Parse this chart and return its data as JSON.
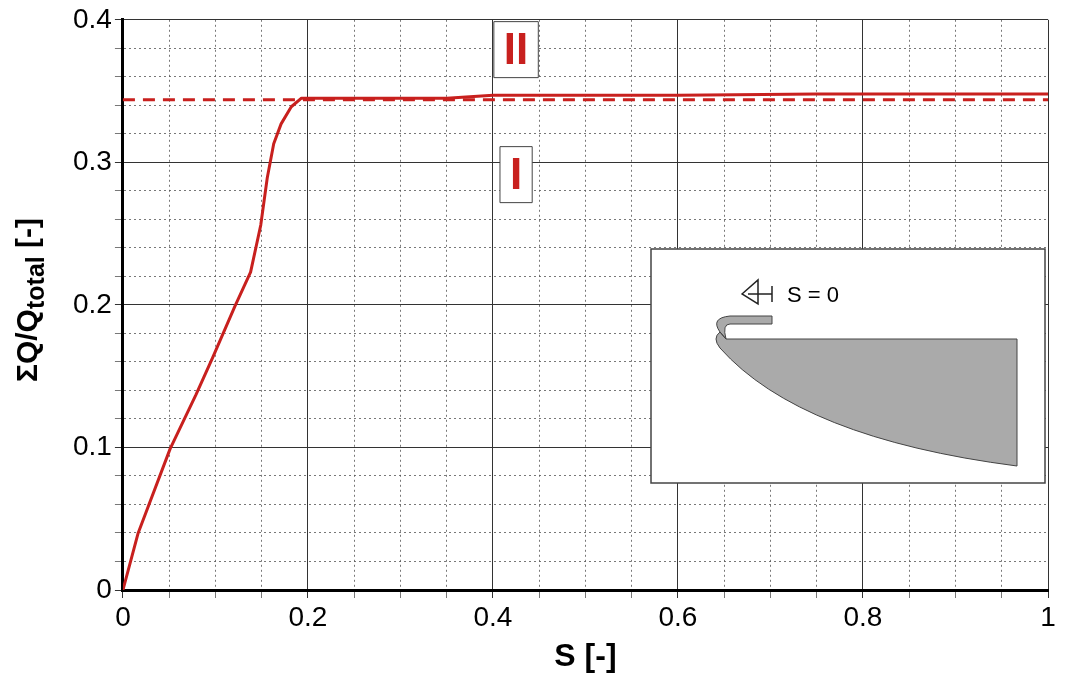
{
  "chart_data": {
    "type": "line",
    "xlabel": "S [-]",
    "ylabel": "ΣQ/Q$_{total}$ [-]",
    "x": [
      0,
      0.0165,
      0.051,
      0.079,
      0.097,
      0.121,
      0.138,
      0.149,
      0.156,
      0.163,
      0.171,
      0.182,
      0.193,
      0.25,
      0.35,
      0.4,
      0.6,
      0.75,
      0.85,
      1
    ],
    "series": [
      {
        "color": "#c8201e",
        "values": [
          0,
          0.04,
          0.099,
          0.137,
          0.163,
          0.199,
          0.223,
          0.256,
          0.289,
          0.313,
          0.327,
          0.339,
          0.345,
          0.345,
          0.345,
          0.347,
          0.347,
          0.348,
          0.348,
          0.348
        ]
      }
    ],
    "ref_lines": [
      {
        "axis": "y",
        "value": 0.344,
        "color": "#c8201e",
        "line_style": "dashed"
      }
    ],
    "annotations": [
      "II",
      "I",
      "S = 0"
    ],
    "xlim": [
      0,
      1
    ],
    "ylim": [
      0,
      0.4
    ],
    "xticks": [
      0,
      {
        "value": 0.05,
        "label": null
      },
      {
        "value": 0.1,
        "label": null
      },
      {
        "value": 0.15,
        "label": null
      },
      0.2,
      {
        "value": 0.25,
        "label": null
      },
      {
        "value": 0.3,
        "label": null
      },
      {
        "value": 0.35,
        "label": null
      },
      0.4,
      {
        "value": 0.45,
        "label": null
      },
      {
        "value": 0.5,
        "label": null
      },
      {
        "value": 0.55,
        "label": null
      },
      0.6,
      {
        "value": 0.65,
        "label": null
      },
      {
        "value": 0.7,
        "label": null
      },
      {
        "value": 0.75,
        "label": null
      },
      0.8,
      {
        "value": 0.85,
        "label": null
      },
      {
        "value": 0.9,
        "label": null
      },
      {
        "value": 0.95,
        "label": null
      },
      1
    ],
    "yticks": [
      0,
      {
        "value": 0.02,
        "label": null
      },
      {
        "value": 0.04,
        "label": null
      },
      {
        "value": 0.06,
        "label": null
      },
      {
        "value": 0.08,
        "label": null
      },
      0.1,
      {
        "value": 0.12,
        "label": null
      },
      {
        "value": 0.14,
        "label": null
      },
      {
        "value": 0.16,
        "label": null
      },
      {
        "value": 0.18,
        "label": null
      },
      0.2,
      {
        "value": 0.22,
        "label": null
      },
      {
        "value": 0.24,
        "label": null
      },
      {
        "value": 0.26,
        "label": null
      },
      {
        "value": 0.28,
        "label": null
      },
      0.3,
      {
        "value": 0.32,
        "label": null
      },
      {
        "value": 0.34,
        "label": null
      },
      {
        "value": 0.36,
        "label": null
      },
      {
        "value": 0.38,
        "label": null
      },
      0.4
    ],
    "grid": true,
    "legend": false,
    "marker": "none",
    "line_style": "solid"
  }
}
